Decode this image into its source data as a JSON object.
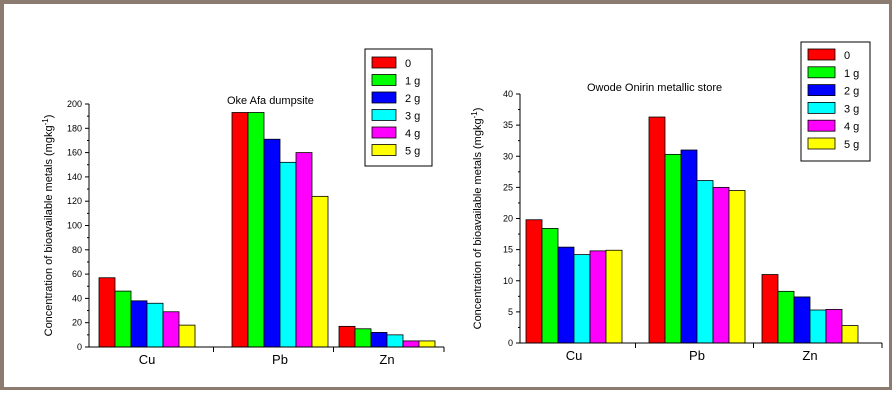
{
  "colors": {
    "0": "#ff0000",
    "1 g": "#00ff00",
    "2 g": "#0000ff",
    "3 g": "#00ffff",
    "4 g": "#ff00ff",
    "5 g": "#ffff00"
  },
  "chart_data": [
    {
      "type": "bar",
      "title": "Oke Afa dumpsite",
      "ylabel": "Concentration of bioavailable metals (mgkg",
      "ylabel_sup": "-1",
      "ylabel_close": ")",
      "categories": [
        "Cu",
        "Pb",
        "Zn"
      ],
      "ylim": [
        0,
        200
      ],
      "yticks": [
        0,
        20,
        40,
        60,
        80,
        100,
        120,
        140,
        160,
        180,
        200
      ],
      "legend_position": "top-center",
      "series": [
        {
          "name": "0",
          "values": [
            57,
            193,
            17
          ]
        },
        {
          "name": "1 g",
          "values": [
            46,
            193,
            15
          ]
        },
        {
          "name": "2 g",
          "values": [
            38,
            171,
            12
          ]
        },
        {
          "name": "3 g",
          "values": [
            36,
            152,
            10
          ]
        },
        {
          "name": "4 g",
          "values": [
            29,
            160,
            5
          ]
        },
        {
          "name": "5 g",
          "values": [
            18,
            124,
            5
          ]
        }
      ]
    },
    {
      "type": "bar",
      "title": "Owode Onirin metallic store",
      "ylabel": "Concentration of bioavailable metals (mgkg",
      "ylabel_sup": "-1",
      "ylabel_close": ")",
      "categories": [
        "Cu",
        "Pb",
        "Zn"
      ],
      "ylim": [
        0,
        40
      ],
      "yticks": [
        0,
        5,
        10,
        15,
        20,
        25,
        30,
        35,
        40
      ],
      "legend_position": "top-right",
      "series": [
        {
          "name": "0",
          "values": [
            19.8,
            36.3,
            11.0
          ]
        },
        {
          "name": "1 g",
          "values": [
            18.4,
            30.3,
            8.3
          ]
        },
        {
          "name": "2 g",
          "values": [
            15.4,
            31.0,
            7.4
          ]
        },
        {
          "name": "3 g",
          "values": [
            14.2,
            26.1,
            5.3
          ]
        },
        {
          "name": "4 g",
          "values": [
            14.8,
            25.0,
            5.4
          ]
        },
        {
          "name": "5 g",
          "values": [
            14.9,
            24.5,
            2.8
          ]
        }
      ]
    }
  ]
}
